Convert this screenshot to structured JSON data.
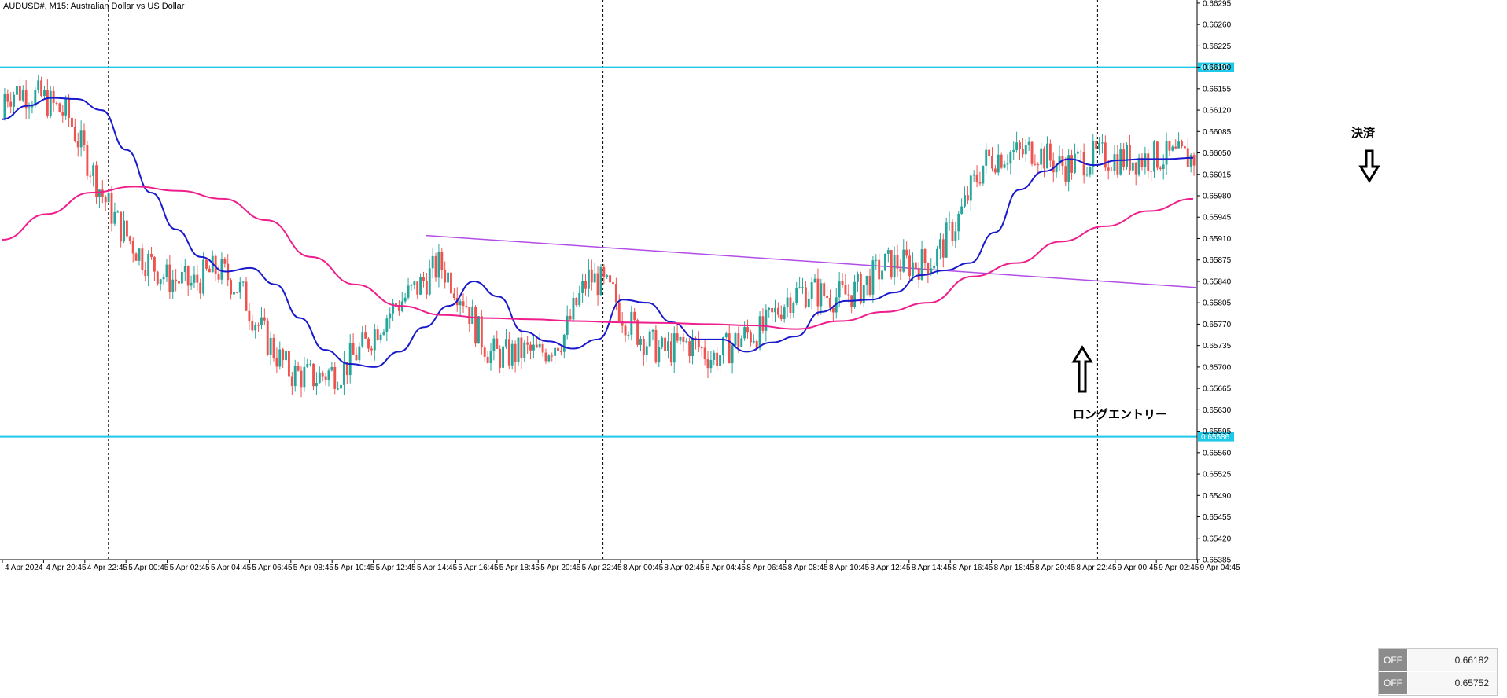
{
  "window": {
    "title": "AUDUSD#, M15:  Australian Dollar vs US Dollar"
  },
  "colors": {
    "background": "#ffffff",
    "bull": "#26a69a",
    "bear": "#ef5350",
    "ma_fast": "#1a1acc",
    "ma_slow": "#ee1f8c",
    "trendline": "#b14ee6",
    "level": "#1ec8e8",
    "annotation_arrow": "#000000"
  },
  "chart_data": {
    "type": "candlestick",
    "title": "AUDUSD#, M15:  Australian Dollar vs US Dollar",
    "ylim": [
      0.65385,
      0.663
    ],
    "y_ticks": [
      "0.66295",
      "0.66260",
      "0.66225",
      "0.66190",
      "0.66155",
      "0.66120",
      "0.66085",
      "0.66050",
      "0.66015",
      "0.65980",
      "0.65945",
      "0.65910",
      "0.65875",
      "0.65840",
      "0.65805",
      "0.65770",
      "0.65735",
      "0.65700",
      "0.65665",
      "0.65630",
      "0.65595",
      "0.65560",
      "0.65525",
      "0.65490",
      "0.65455",
      "0.65420",
      "0.65385"
    ],
    "x_ticks": [
      "4 Apr 2024",
      "4 Apr 20:45",
      "4 Apr 22:45",
      "5 Apr 00:45",
      "5 Apr 02:45",
      "5 Apr 04:45",
      "5 Apr 06:45",
      "5 Apr 08:45",
      "5 Apr 10:45",
      "5 Apr 12:45",
      "5 Apr 14:45",
      "5 Apr 16:45",
      "5 Apr 18:45",
      "5 Apr 20:45",
      "5 Apr 22:45",
      "8 Apr 00:45",
      "8 Apr 02:45",
      "8 Apr 04:45",
      "8 Apr 06:45",
      "8 Apr 08:45",
      "8 Apr 10:45",
      "8 Apr 12:45",
      "8 Apr 14:45",
      "8 Apr 16:45",
      "8 Apr 18:45",
      "8 Apr 20:45",
      "8 Apr 22:45",
      "9 Apr 00:45",
      "9 Apr 02:45",
      "9 Apr 04:45"
    ],
    "day_separators": [
      "4 Apr 22:45",
      "5 Apr 22:45",
      "8 Apr 22:45"
    ],
    "horizontal_levels": [
      {
        "price": 0.6619,
        "label": "0.66190"
      },
      {
        "price": 0.65586,
        "label": "0.65586"
      }
    ],
    "trendline": {
      "from": {
        "x": "5 Apr 14:45",
        "price": 0.65915
      },
      "to": {
        "x": "9 Apr 04:45",
        "price": 0.6583
      }
    },
    "series": [
      {
        "type": "candles",
        "bull_candles": 230,
        "bear_candles": 160
      },
      {
        "type": "line",
        "role": "fast moving average",
        "values": [
          0.66105,
          0.66127,
          0.6614,
          0.66138,
          0.6612,
          0.66055,
          0.65985,
          0.65925,
          0.6588,
          0.65856,
          0.65862,
          0.65835,
          0.6578,
          0.65728,
          0.65705,
          0.657,
          0.65725,
          0.65765,
          0.658,
          0.6584,
          0.65815,
          0.65758,
          0.65742,
          0.6573,
          0.65745,
          0.6581,
          0.65805,
          0.65773,
          0.65745,
          0.65745,
          0.65725,
          0.6574,
          0.6575,
          0.6579,
          0.65808,
          0.6581,
          0.65822,
          0.6585,
          0.65858,
          0.6587,
          0.6592,
          0.6599,
          0.6602,
          0.6604,
          0.6603,
          0.66038,
          0.6604,
          0.6604,
          0.66042
        ]
      },
      {
        "type": "line",
        "role": "slow moving average",
        "values": [
          0.65908,
          0.6595,
          0.65985,
          0.65995,
          0.65988,
          0.65975,
          0.6594,
          0.6588,
          0.65835,
          0.658,
          0.65785,
          0.6578,
          0.65778,
          0.65775,
          0.65773,
          0.65772,
          0.6577,
          0.65768,
          0.65762,
          0.65775,
          0.6579,
          0.65805,
          0.65848,
          0.6587,
          0.65905,
          0.6593,
          0.65955,
          0.65975
        ]
      }
    ]
  },
  "annotations": {
    "long_entry": "ロングエントリー",
    "exit": "決済"
  },
  "off_panel": {
    "rows": [
      {
        "button": "OFF",
        "value": "0.66182"
      },
      {
        "button": "OFF",
        "value": "0.65752"
      }
    ]
  }
}
